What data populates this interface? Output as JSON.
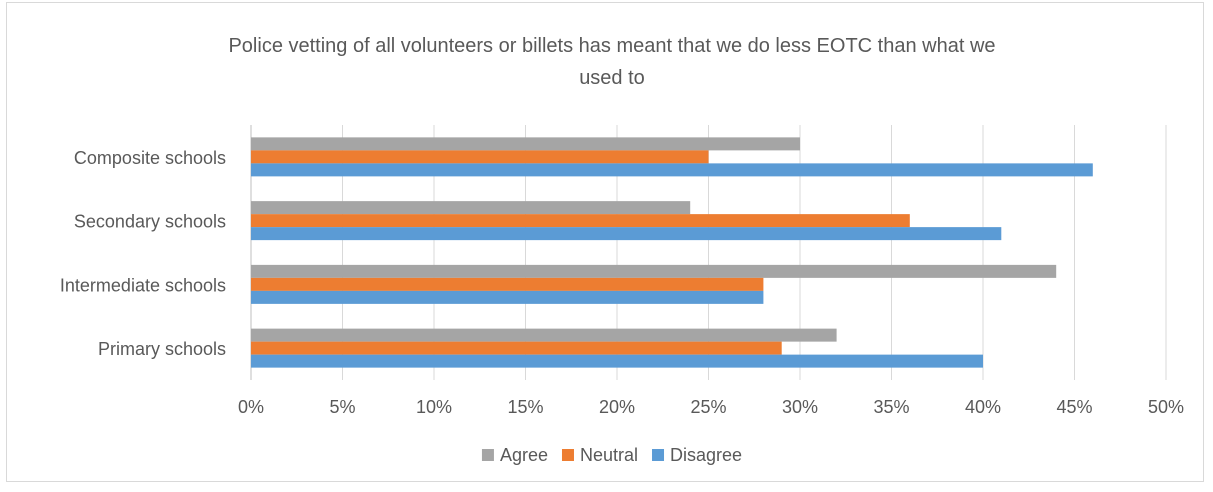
{
  "chart_data": {
    "type": "bar",
    "orientation": "horizontal",
    "title": "Police vetting of all volunteers or billets has meant that we do less EOTC than what we used to",
    "title_lines": [
      "Police vetting of all volunteers or billets has meant that we do less EOTC than what we",
      "used to"
    ],
    "categories": [
      "Composite schools",
      "Secondary schools",
      "Intermediate schools",
      "Primary schools"
    ],
    "series": [
      {
        "name": "Agree",
        "color": "#a5a5a5",
        "values": [
          30,
          24,
          44,
          32
        ]
      },
      {
        "name": "Neutral",
        "color": "#ed7d31",
        "values": [
          25,
          36,
          28,
          29
        ]
      },
      {
        "name": "Disagree",
        "color": "#5b9bd5",
        "values": [
          46,
          41,
          28,
          40
        ]
      }
    ],
    "x_ticks": [
      "0%",
      "5%",
      "10%",
      "15%",
      "20%",
      "25%",
      "30%",
      "35%",
      "40%",
      "45%",
      "50%"
    ],
    "xlim": [
      0,
      50
    ],
    "unit": "%",
    "grid": "vertical",
    "legend": "bottom"
  }
}
